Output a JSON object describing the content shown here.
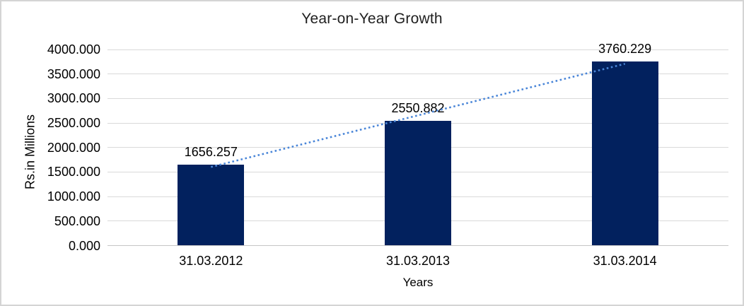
{
  "chart_data": {
    "type": "bar",
    "title": "Year-on-Year Growth",
    "xlabel": "Years",
    "ylabel": "Rs.in Millions",
    "categories": [
      "31.03.2012",
      "31.03.2013",
      "31.03.2014"
    ],
    "values": [
      1656.257,
      2550.882,
      3760.229
    ],
    "data_labels": [
      "1656.257",
      "2550.882",
      "3760.229"
    ],
    "ylim": [
      0,
      4000
    ],
    "ytick_step": 500,
    "ytick_labels": [
      "0.000",
      "500.000",
      "1000.000",
      "1500.000",
      "2000.000",
      "2500.000",
      "3000.000",
      "3500.000",
      "4000.000"
    ],
    "grid": true,
    "legend": false,
    "trendline": {
      "type": "linear",
      "style": "dotted"
    },
    "colors": {
      "bar": "#02215e",
      "trendline": "#4a86d8",
      "gridline": "#d9d9d9",
      "axis_line": "#c6c6c6",
      "text": "#000000",
      "background": "#ffffff",
      "border": "#d4d4d4"
    }
  }
}
